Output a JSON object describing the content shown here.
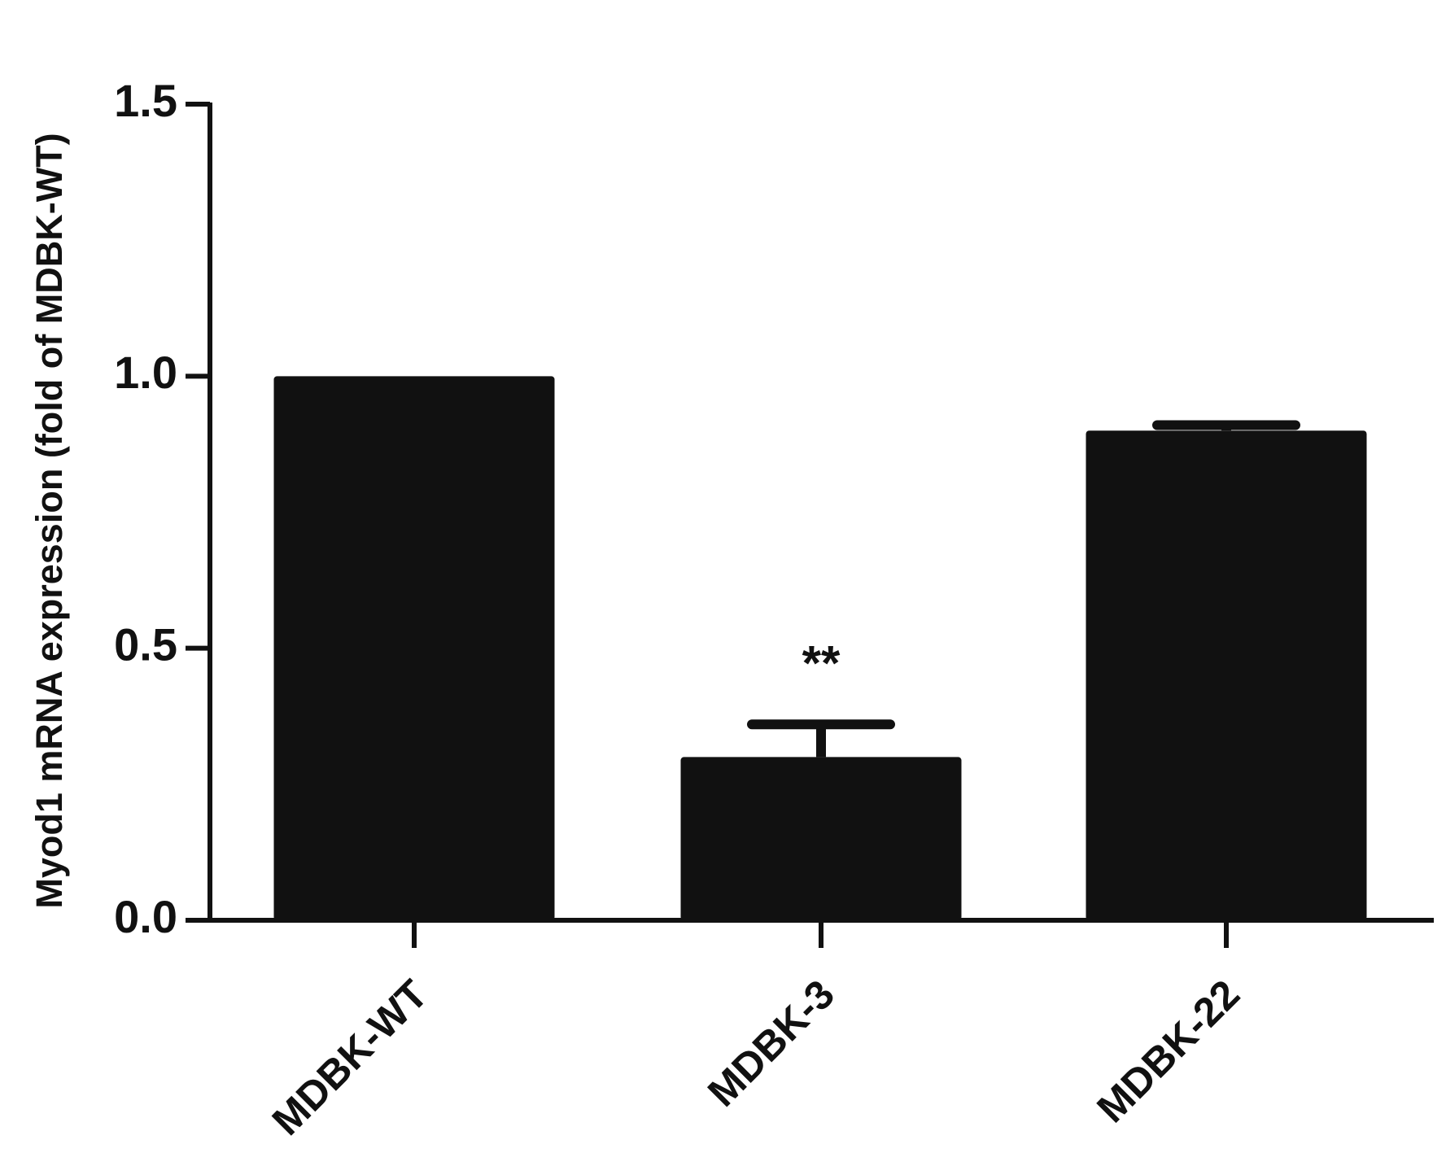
{
  "chart_data": {
    "type": "bar",
    "y_label": "Myod1 mRNA expression (fold of MDBK-WT)",
    "categories": [
      "MDBK-WT",
      "MDBK-3",
      "MDBK-22"
    ],
    "values": [
      1.0,
      0.3,
      0.9
    ],
    "errors": [
      0,
      0.06,
      0.01
    ],
    "color": "#111111",
    "ylim": [
      0,
      1.5
    ],
    "yticks": [
      {
        "value": 0,
        "label": "0.0"
      },
      {
        "value": 0.5,
        "label": "0.5"
      },
      {
        "value": 1,
        "label": "1.0"
      },
      {
        "value": 1.5,
        "label": "1.5"
      }
    ],
    "annotations": [
      {
        "text": "**",
        "category": 1
      }
    ]
  }
}
